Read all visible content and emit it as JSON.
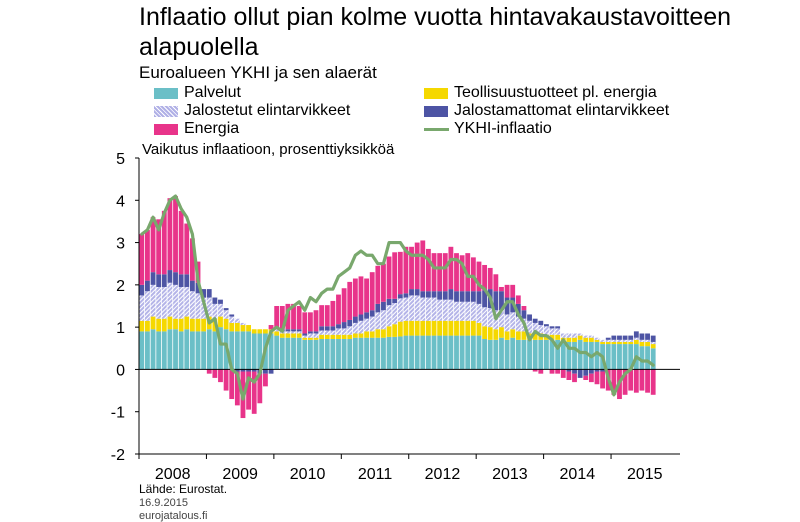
{
  "title": "Inflaatio ollut pian kolme vuotta hintavakaustavoitteen alapuolella",
  "subtitle": "Euroalueen YKHI ja sen alaerät",
  "unit_label": "Vaikutus inflaatioon, prosenttiyksikköä",
  "legend": [
    {
      "label": "Palvelut",
      "color": "#6bbfc7",
      "kind": "bar"
    },
    {
      "label": "Teollisuustuotteet pl. energia",
      "color": "#f5d800",
      "kind": "bar"
    },
    {
      "label": "Jalostetut elintarvikkeet",
      "color": "#c8c8ee",
      "kind": "bar-pattern"
    },
    {
      "label": "Jalostamattomat elintarvikkeet",
      "color": "#4d54a4",
      "kind": "bar"
    },
    {
      "label": "Energia",
      "color": "#e8348a",
      "kind": "bar"
    },
    {
      "label": "YKHI-inflaatio",
      "color": "#79a86d",
      "kind": "line"
    }
  ],
  "footer": {
    "source": "Lähde: Eurostat.",
    "date": "16.9.2015",
    "site": "eurojatalous.fi"
  },
  "chart_data": {
    "type": "bar",
    "stacked": true,
    "frequency": "monthly",
    "start": "2008-01",
    "end": "2015-08",
    "x_tick_labels": [
      "2008",
      "2009",
      "2010",
      "2011",
      "2012",
      "2013",
      "2014",
      "2015"
    ],
    "ylim": [
      -2,
      5
    ],
    "y_ticks": [
      -2,
      -1,
      0,
      1,
      2,
      3,
      4,
      5
    ],
    "ylabel": "Vaikutus inflaatioon, prosenttiyksikköä",
    "grid": false,
    "series": [
      {
        "name": "Palvelut",
        "color": "#6bbfc7",
        "values": [
          0.9,
          0.9,
          0.95,
          0.9,
          0.9,
          0.95,
          0.95,
          0.9,
          0.95,
          0.9,
          0.9,
          0.9,
          0.95,
          0.9,
          1.0,
          0.95,
          0.9,
          0.9,
          0.9,
          0.9,
          0.85,
          0.85,
          0.85,
          0.85,
          0.8,
          0.75,
          0.75,
          0.75,
          0.75,
          0.7,
          0.7,
          0.7,
          0.72,
          0.72,
          0.72,
          0.72,
          0.72,
          0.72,
          0.75,
          0.75,
          0.75,
          0.75,
          0.75,
          0.75,
          0.77,
          0.77,
          0.78,
          0.8,
          0.8,
          0.8,
          0.8,
          0.8,
          0.8,
          0.8,
          0.8,
          0.8,
          0.8,
          0.8,
          0.8,
          0.8,
          0.8,
          0.72,
          0.7,
          0.7,
          0.75,
          0.7,
          0.75,
          0.7,
          0.7,
          0.7,
          0.7,
          0.7,
          0.7,
          0.7,
          0.7,
          0.65,
          0.65,
          0.65,
          0.7,
          0.65,
          0.65,
          0.65,
          0.6,
          0.6,
          0.6,
          0.6,
          0.6,
          0.6,
          0.6,
          0.55,
          0.55,
          0.5
        ]
      },
      {
        "name": "Teollisuustuotteet pl. energia",
        "color": "#f5d800",
        "values": [
          0.25,
          0.25,
          0.3,
          0.3,
          0.3,
          0.3,
          0.25,
          0.3,
          0.3,
          0.3,
          0.3,
          0.3,
          0.3,
          0.3,
          0.25,
          0.25,
          0.2,
          0.2,
          0.15,
          0.15,
          0.1,
          0.1,
          0.1,
          0.1,
          0.1,
          0.1,
          0.1,
          0.1,
          0.1,
          0.05,
          0.05,
          0.05,
          0.1,
          0.1,
          0.1,
          0.1,
          0.1,
          0.1,
          0.1,
          0.1,
          0.15,
          0.15,
          0.2,
          0.2,
          0.25,
          0.3,
          0.35,
          0.35,
          0.35,
          0.35,
          0.35,
          0.35,
          0.35,
          0.35,
          0.35,
          0.35,
          0.35,
          0.35,
          0.35,
          0.35,
          0.3,
          0.3,
          0.3,
          0.25,
          0.25,
          0.2,
          0.2,
          0.2,
          0.2,
          0.15,
          0.15,
          0.15,
          0.12,
          0.12,
          0.12,
          0.1,
          0.1,
          0.1,
          0.1,
          0.1,
          0.1,
          0.05,
          0.05,
          0.05,
          0.05,
          0.05,
          0.05,
          0.05,
          0.1,
          0.1,
          0.1,
          0.1
        ]
      },
      {
        "name": "Jalostetut elintarvikkeet",
        "color": "#c8c8ee",
        "values": [
          0.6,
          0.7,
          0.75,
          0.75,
          0.75,
          0.8,
          0.8,
          0.75,
          0.7,
          0.65,
          0.6,
          0.5,
          0.45,
          0.35,
          0.3,
          0.2,
          0.15,
          0.1,
          0.05,
          0.0,
          0.0,
          0.0,
          0.0,
          0.0,
          0.05,
          0.05,
          0.05,
          0.05,
          0.05,
          0.05,
          0.1,
          0.1,
          0.1,
          0.1,
          0.1,
          0.15,
          0.15,
          0.2,
          0.25,
          0.3,
          0.3,
          0.35,
          0.4,
          0.45,
          0.5,
          0.5,
          0.55,
          0.55,
          0.6,
          0.6,
          0.55,
          0.55,
          0.55,
          0.5,
          0.5,
          0.5,
          0.45,
          0.45,
          0.45,
          0.45,
          0.45,
          0.45,
          0.45,
          0.45,
          0.4,
          0.4,
          0.4,
          0.35,
          0.3,
          0.3,
          0.25,
          0.2,
          0.2,
          0.15,
          0.15,
          0.1,
          0.1,
          0.1,
          0.05,
          0.05,
          0.05,
          0.05,
          0.05,
          0.05,
          0.05,
          0.05,
          0.05,
          0.05,
          0.05,
          0.05,
          0.05,
          0.05
        ]
      },
      {
        "name": "Jalostamattomat elintarvikkeet",
        "color": "#4d54a4",
        "values": [
          0.25,
          0.25,
          0.3,
          0.3,
          0.3,
          0.3,
          0.3,
          0.3,
          0.3,
          0.25,
          0.25,
          0.2,
          0.2,
          0.15,
          0.1,
          0.05,
          0.05,
          -0.05,
          -0.05,
          -0.05,
          -0.05,
          -0.1,
          -0.1,
          -0.1,
          0.05,
          0.05,
          0.05,
          0.05,
          0.05,
          0.05,
          0.05,
          0.05,
          0.1,
          0.1,
          0.1,
          0.1,
          0.15,
          0.15,
          0.15,
          0.15,
          0.15,
          0.15,
          0.2,
          0.2,
          0.15,
          0.1,
          0.1,
          0.1,
          0.15,
          0.15,
          0.15,
          0.15,
          0.15,
          0.2,
          0.2,
          0.25,
          0.25,
          0.25,
          0.25,
          0.25,
          0.3,
          0.4,
          0.45,
          0.45,
          0.45,
          0.4,
          0.35,
          0.3,
          0.2,
          0.15,
          0.1,
          0.1,
          0.05,
          0.05,
          0.05,
          0.0,
          -0.05,
          -0.1,
          -0.2,
          -0.15,
          -0.1,
          -0.05,
          -0.05,
          0.05,
          0.1,
          0.1,
          0.1,
          0.1,
          0.15,
          0.15,
          0.15,
          0.15
        ]
      },
      {
        "name": "Energia",
        "color": "#e8348a",
        "values": [
          1.2,
          1.2,
          1.3,
          1.3,
          1.5,
          1.7,
          1.8,
          1.5,
          1.2,
          1.0,
          0.5,
          0.0,
          -0.1,
          -0.2,
          -0.3,
          -0.5,
          -0.7,
          -0.8,
          -1.1,
          -0.9,
          -1.0,
          -0.7,
          -0.3,
          0.1,
          0.5,
          0.55,
          0.6,
          0.6,
          0.55,
          0.5,
          0.45,
          0.5,
          0.5,
          0.5,
          0.6,
          0.7,
          0.8,
          0.9,
          0.9,
          0.9,
          0.8,
          0.9,
          0.9,
          0.9,
          1.0,
          1.1,
          1.0,
          1.1,
          1.0,
          1.1,
          1.2,
          1.0,
          0.9,
          0.9,
          0.9,
          1.0,
          0.9,
          0.85,
          0.9,
          0.8,
          0.7,
          0.6,
          0.5,
          0.4,
          0.1,
          0.3,
          0.3,
          0.2,
          0.1,
          0.0,
          -0.05,
          -0.1,
          0.0,
          -0.1,
          -0.1,
          -0.2,
          -0.2,
          -0.2,
          0.0,
          -0.1,
          -0.2,
          -0.3,
          -0.4,
          -0.5,
          -0.6,
          -0.7,
          -0.6,
          -0.5,
          -0.55,
          -0.5,
          -0.55,
          -0.6
        ]
      }
    ],
    "line": {
      "name": "YKHI-inflaatio",
      "color": "#79a86d",
      "values": [
        3.2,
        3.3,
        3.6,
        3.3,
        3.7,
        4.0,
        4.1,
        3.8,
        3.6,
        3.2,
        2.1,
        1.6,
        1.1,
        1.2,
        0.6,
        0.6,
        0.0,
        -0.1,
        -0.7,
        -0.2,
        -0.3,
        -0.1,
        0.5,
        0.9,
        1.0,
        0.9,
        1.4,
        1.5,
        1.6,
        1.4,
        1.7,
        1.6,
        1.8,
        1.9,
        1.9,
        2.2,
        2.3,
        2.4,
        2.7,
        2.8,
        2.7,
        2.7,
        2.5,
        2.5,
        3.0,
        3.0,
        3.0,
        2.8,
        2.7,
        2.7,
        2.7,
        2.6,
        2.4,
        2.4,
        2.4,
        2.6,
        2.6,
        2.5,
        2.2,
        2.2,
        2.0,
        1.9,
        1.7,
        1.2,
        1.4,
        1.6,
        1.6,
        1.3,
        1.1,
        0.7,
        0.9,
        0.8,
        0.8,
        0.7,
        0.5,
        0.7,
        0.5,
        0.5,
        0.4,
        0.4,
        0.3,
        0.4,
        0.3,
        -0.2,
        -0.6,
        -0.3,
        -0.1,
        0.0,
        0.3,
        0.2,
        0.2,
        0.1
      ]
    }
  }
}
